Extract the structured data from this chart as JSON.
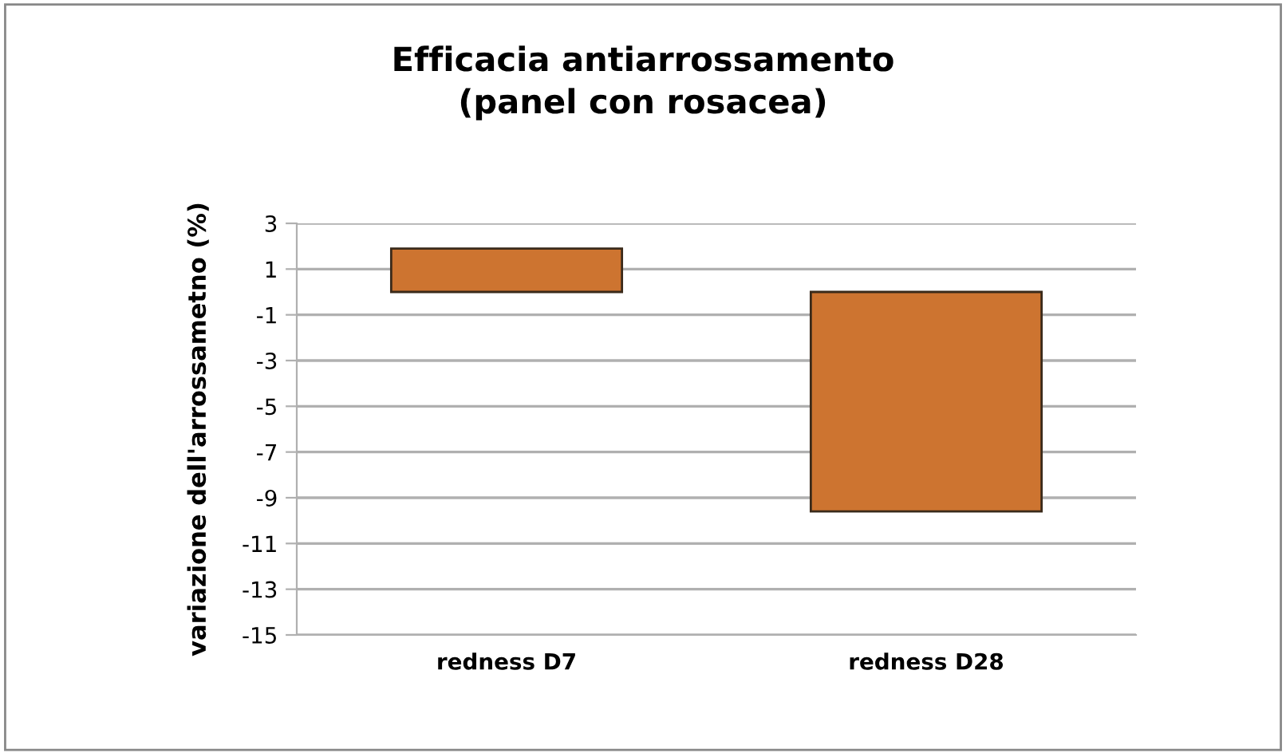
{
  "chart_data": {
    "type": "bar",
    "title": "Efficacia antiarrossamento\n(panel con rosacea)",
    "ylabel": "variazione dell'arrossametno (%)",
    "categories": [
      "redness D7",
      "redness D28"
    ],
    "values": [
      1.9,
      -9.6
    ],
    "color": "#cd7430",
    "ylim": [
      -15,
      3
    ],
    "yticks": [
      -15,
      -13,
      -11,
      -9,
      -7,
      -5,
      -3,
      -1,
      1,
      3
    ],
    "grid": "y",
    "legend": false
  }
}
